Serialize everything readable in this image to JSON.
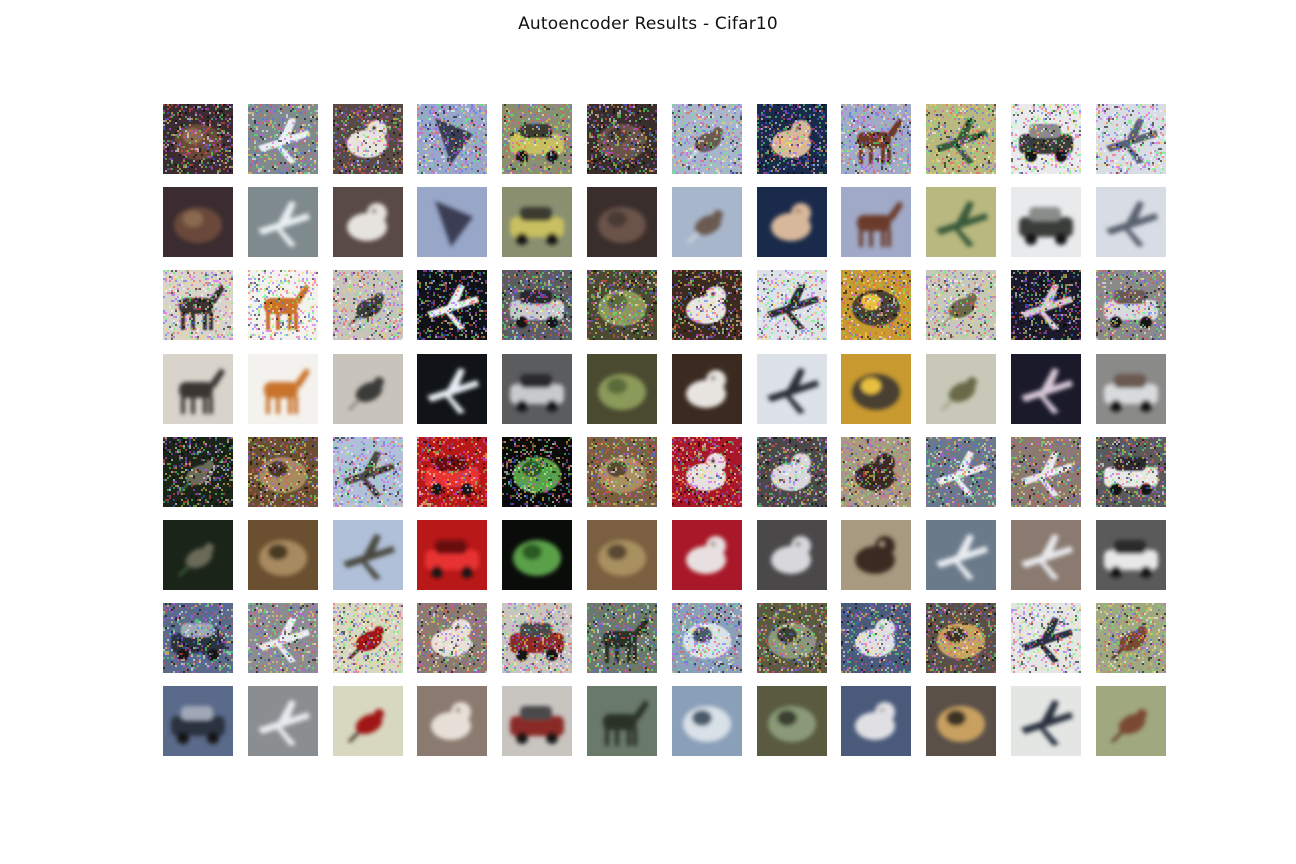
{
  "figure": {
    "title": "Autoencoder Results - Cifar10",
    "row_kinds": [
      "noisy input",
      "reconstruction",
      "noisy input",
      "reconstruction",
      "noisy input",
      "reconstruction",
      "noisy input",
      "reconstruction"
    ],
    "images": [
      [
        {
          "subject": "cat",
          "bg": "#3a2c30",
          "fg": "#6a4a3a",
          "accent": "#8a6a50",
          "shape": "blob"
        },
        {
          "subject": "airplane",
          "bg": "#7f8a8e",
          "fg": "#e8eef2",
          "accent": "#5a4a3a",
          "shape": "plane"
        },
        {
          "subject": "dog",
          "bg": "#5a4a45",
          "fg": "#e6e2de",
          "accent": "#3a2a25",
          "shape": "animal"
        },
        {
          "subject": "airplane",
          "bg": "#98a6c8",
          "fg": "#3a3e55",
          "accent": "#7a86a8",
          "shape": "triangle"
        },
        {
          "subject": "car",
          "bg": "#8a8f70",
          "fg": "#c8c060",
          "accent": "#3a3a30",
          "shape": "car"
        },
        {
          "subject": "cat",
          "bg": "#3a2e2c",
          "fg": "#6a5248",
          "accent": "#4a3a35",
          "shape": "blob"
        },
        {
          "subject": "bird",
          "bg": "#a8b6cc",
          "fg": "#6a5a50",
          "accent": "#d0d6e0",
          "shape": "bird"
        },
        {
          "subject": "dog",
          "bg": "#1a2a4a",
          "fg": "#d8b89a",
          "accent": "#8a6a50",
          "shape": "animal"
        },
        {
          "subject": "horse",
          "bg": "#a0aac8",
          "fg": "#6a3a2a",
          "accent": "#7a8a50",
          "shape": "horse"
        },
        {
          "subject": "airplane",
          "bg": "#b8b880",
          "fg": "#3a5a3a",
          "accent": "#a8a870",
          "shape": "plane"
        },
        {
          "subject": "car",
          "bg": "#e8eaec",
          "fg": "#3a3c3a",
          "accent": "#8a8c8a",
          "shape": "car"
        },
        {
          "subject": "airplane",
          "bg": "#d8dce4",
          "fg": "#5a6270",
          "accent": "#b0b6c0",
          "shape": "plane"
        }
      ],
      [
        {
          "subject": "horse",
          "bg": "#d8d4cc",
          "fg": "#3a3430",
          "accent": "#8a8070",
          "shape": "horse"
        },
        {
          "subject": "horse",
          "bg": "#f4f2ee",
          "fg": "#c8722a",
          "accent": "#a04a1a",
          "shape": "horse"
        },
        {
          "subject": "bird",
          "bg": "#c8c4bc",
          "fg": "#3a3a38",
          "accent": "#8a8680",
          "shape": "bird"
        },
        {
          "subject": "airplane",
          "bg": "#101418",
          "fg": "#e8eef4",
          "accent": "#304050",
          "shape": "plane"
        },
        {
          "subject": "car",
          "bg": "#5a5c5e",
          "fg": "#c8cacc",
          "accent": "#2a2c2e",
          "shape": "car"
        },
        {
          "subject": "frog",
          "bg": "#4a4a30",
          "fg": "#8a9a5a",
          "accent": "#5a6a3a",
          "shape": "blob"
        },
        {
          "subject": "dog",
          "bg": "#3a2a20",
          "fg": "#e8e4e0",
          "accent": "#1a1414",
          "shape": "animal"
        },
        {
          "subject": "airplane",
          "bg": "#dce2e8",
          "fg": "#2a2e34",
          "accent": "#a8b0b8",
          "shape": "plane"
        },
        {
          "subject": "ship",
          "bg": "#c89a30",
          "fg": "#4a4030",
          "accent": "#e8c040",
          "shape": "blob"
        },
        {
          "subject": "bird",
          "bg": "#c8c8b8",
          "fg": "#6a6a4a",
          "accent": "#a0a088",
          "shape": "bird"
        },
        {
          "subject": "airplane",
          "bg": "#1a1a2a",
          "fg": "#d8c8d8",
          "accent": "#a06a8a",
          "shape": "plane"
        },
        {
          "subject": "car",
          "bg": "#8a8a88",
          "fg": "#d8dadc",
          "accent": "#6a5a50",
          "shape": "car"
        }
      ],
      [
        {
          "subject": "bird",
          "bg": "#1a2418",
          "fg": "#6a6a58",
          "accent": "#3a5a3a",
          "shape": "bird"
        },
        {
          "subject": "frog",
          "bg": "#6a5030",
          "fg": "#a88a60",
          "accent": "#4a3a20",
          "shape": "blob"
        },
        {
          "subject": "airplane",
          "bg": "#b0c0d8",
          "fg": "#4a4a40",
          "accent": "#8a8a70",
          "shape": "plane"
        },
        {
          "subject": "truck",
          "bg": "#b81818",
          "fg": "#e83030",
          "accent": "#6a1010",
          "shape": "car"
        },
        {
          "subject": "frog",
          "bg": "#0a0c0a",
          "fg": "#5aa04a",
          "accent": "#2a5a20",
          "shape": "blob"
        },
        {
          "subject": "frog",
          "bg": "#7a6040",
          "fg": "#a89060",
          "accent": "#5a4a30",
          "shape": "blob"
        },
        {
          "subject": "cat",
          "bg": "#a81828",
          "fg": "#e8e0e0",
          "accent": "#6a1020",
          "shape": "animal"
        },
        {
          "subject": "cat",
          "bg": "#4a4848",
          "fg": "#d8d8dc",
          "accent": "#2a2828",
          "shape": "animal"
        },
        {
          "subject": "dog",
          "bg": "#a89a80",
          "fg": "#3a2a20",
          "accent": "#c8b898",
          "shape": "animal"
        },
        {
          "subject": "airplane",
          "bg": "#6a7a8a",
          "fg": "#e8ecf0",
          "accent": "#5a6a50",
          "shape": "plane"
        },
        {
          "subject": "airplane",
          "bg": "#8a7a70",
          "fg": "#e8e8ec",
          "accent": "#5a4a40",
          "shape": "plane"
        },
        {
          "subject": "truck",
          "bg": "#5a5a5a",
          "fg": "#e8e8e8",
          "accent": "#2a2a2a",
          "shape": "car"
        }
      ],
      [
        {
          "subject": "car",
          "bg": "#5a6a8a",
          "fg": "#2a3040",
          "accent": "#a0a8b8",
          "shape": "car"
        },
        {
          "subject": "airplane",
          "bg": "#8a8e90",
          "fg": "#e8ecf0",
          "accent": "#5a5e60",
          "shape": "plane"
        },
        {
          "subject": "bird",
          "bg": "#d8d8c0",
          "fg": "#a01818",
          "accent": "#3a2a20",
          "shape": "bird"
        },
        {
          "subject": "dog",
          "bg": "#8a7a70",
          "fg": "#e8e0d8",
          "accent": "#5a4a40",
          "shape": "animal"
        },
        {
          "subject": "truck",
          "bg": "#c8c4c0",
          "fg": "#8a2a28",
          "accent": "#4a4a48",
          "shape": "car"
        },
        {
          "subject": "horse",
          "bg": "#6a7a6a",
          "fg": "#2a3028",
          "accent": "#a0a898",
          "shape": "horse"
        },
        {
          "subject": "ship",
          "bg": "#8aa0b8",
          "fg": "#d8e0e8",
          "accent": "#4a5a6a",
          "shape": "blob"
        },
        {
          "subject": "frog",
          "bg": "#5a5a40",
          "fg": "#8a9a78",
          "accent": "#3a4030",
          "shape": "blob"
        },
        {
          "subject": "cat",
          "bg": "#4a5a7a",
          "fg": "#e0e0e4",
          "accent": "#8a8a90",
          "shape": "animal"
        },
        {
          "subject": "frog",
          "bg": "#5a5048",
          "fg": "#c8a060",
          "accent": "#3a3028",
          "shape": "blob"
        },
        {
          "subject": "airplane",
          "bg": "#e4e6e4",
          "fg": "#2a3040",
          "accent": "#a0a8b0",
          "shape": "plane"
        },
        {
          "subject": "bird",
          "bg": "#a0a880",
          "fg": "#7a4a30",
          "accent": "#5a3a28",
          "shape": "bird"
        }
      ]
    ]
  }
}
